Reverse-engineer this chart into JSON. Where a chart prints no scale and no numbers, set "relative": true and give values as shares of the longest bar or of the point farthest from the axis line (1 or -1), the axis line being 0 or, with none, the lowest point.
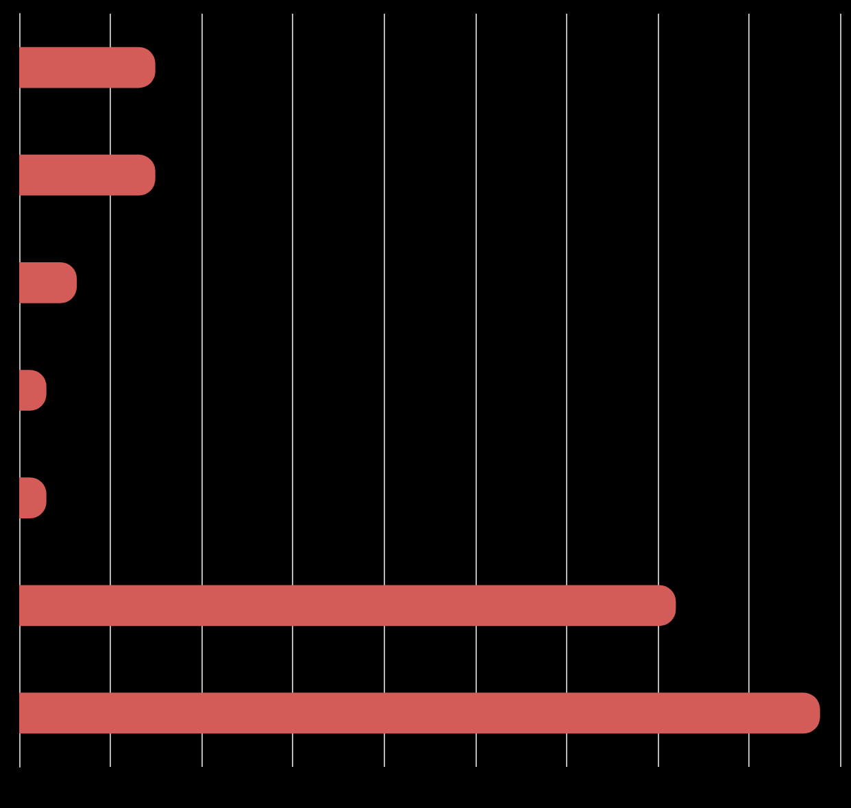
{
  "chart_data": {
    "type": "bar",
    "orientation": "horizontal",
    "relative": true,
    "categories": [
      null,
      null,
      null,
      null,
      null,
      null,
      null
    ],
    "values": [
      0.17,
      0.17,
      0.072,
      0.034,
      0.034,
      0.82,
      1
    ],
    "color": "#d35c59",
    "grid": "x"
  }
}
